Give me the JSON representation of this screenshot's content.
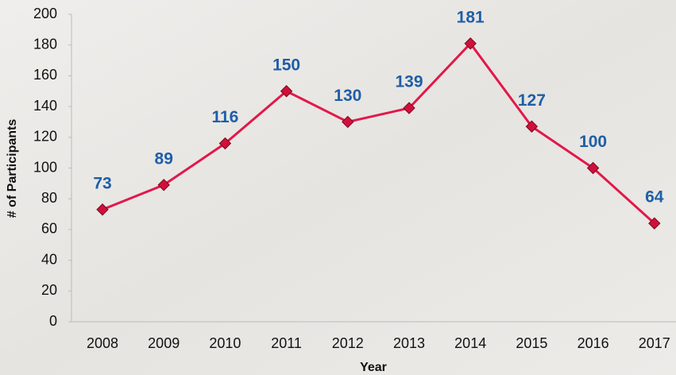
{
  "chart_data": {
    "type": "line",
    "x_label": "Year",
    "y_label": "# of Participants",
    "categories": [
      "2008",
      "2009",
      "2010",
      "2011",
      "2012",
      "2013",
      "2014",
      "2015",
      "2016",
      "2017"
    ],
    "values": [
      73,
      89,
      116,
      150,
      130,
      139,
      181,
      127,
      100,
      64
    ],
    "color": "#e2184a",
    "marker_color": "#d0103a",
    "label_color": "#1f5ea8",
    "ylim": [
      0,
      200
    ],
    "yticks": [
      0,
      20,
      40,
      60,
      80,
      100,
      120,
      140,
      160,
      180,
      200
    ],
    "grid": false
  }
}
